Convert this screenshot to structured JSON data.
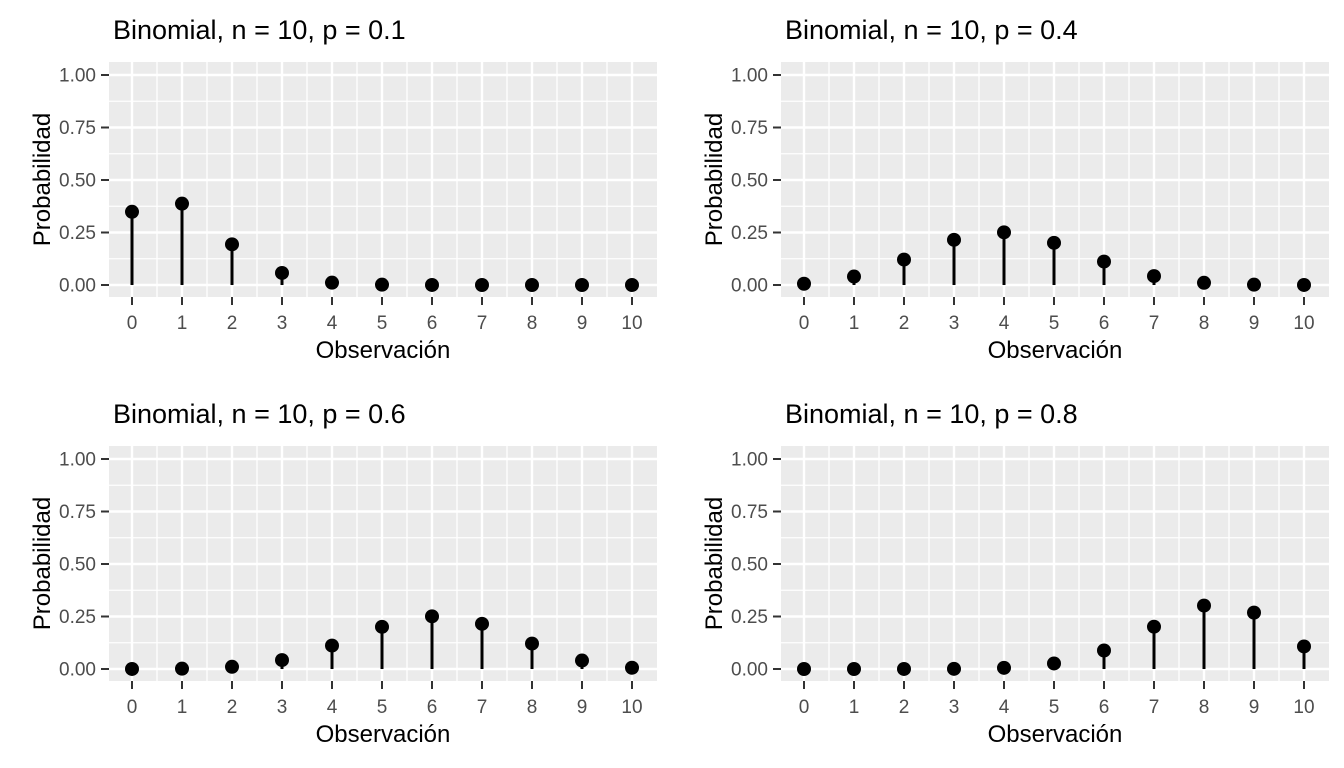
{
  "figure_name": "Binomial distribution PMF small multiples",
  "style": {
    "panel_background": "#EBEBEB",
    "gridline_color": "#FFFFFF",
    "tick_mark_color": "#333333",
    "tick_label_color": "#4D4D4D",
    "title_color": "#000000",
    "axis_title_color": "#000000",
    "point_color": "#000000",
    "stem_color": "#000000",
    "figure_background": "#FFFFFF"
  },
  "chart_data": [
    {
      "type": "scatter",
      "mark": "point-with-stem",
      "title": "Binomial, n = 10, p = 0.1",
      "xlabel": "Observación",
      "ylabel": "Probabilidad",
      "x": [
        0,
        1,
        2,
        3,
        4,
        5,
        6,
        7,
        8,
        9,
        10
      ],
      "values": [
        0.3487,
        0.3874,
        0.1937,
        0.0574,
        0.0112,
        0.0015,
        0.0001,
        0,
        0,
        0,
        0
      ],
      "xtick_labels": [
        "0",
        "1",
        "2",
        "3",
        "4",
        "5",
        "6",
        "7",
        "8",
        "9",
        "10"
      ],
      "yticks": [
        0,
        0.25,
        0.5,
        0.75,
        1.0
      ],
      "ytick_labels": [
        "0.00",
        "0.25",
        "0.50",
        "0.75",
        "1.00"
      ],
      "ylim": [
        0,
        1
      ],
      "grid": true,
      "legend": "none"
    },
    {
      "type": "scatter",
      "mark": "point-with-stem",
      "title": "Binomial, n = 10, p = 0.4",
      "xlabel": "Observación",
      "ylabel": "Probabilidad",
      "x": [
        0,
        1,
        2,
        3,
        4,
        5,
        6,
        7,
        8,
        9,
        10
      ],
      "values": [
        0.006,
        0.0403,
        0.1209,
        0.215,
        0.2508,
        0.2007,
        0.1115,
        0.0425,
        0.0106,
        0.0016,
        0.0001
      ],
      "xtick_labels": [
        "0",
        "1",
        "2",
        "3",
        "4",
        "5",
        "6",
        "7",
        "8",
        "9",
        "10"
      ],
      "yticks": [
        0,
        0.25,
        0.5,
        0.75,
        1.0
      ],
      "ytick_labels": [
        "0.00",
        "0.25",
        "0.50",
        "0.75",
        "1.00"
      ],
      "ylim": [
        0,
        1
      ],
      "grid": true,
      "legend": "none"
    },
    {
      "type": "scatter",
      "mark": "point-with-stem",
      "title": "Binomial, n = 10, p = 0.6",
      "xlabel": "Observación",
      "ylabel": "Probabilidad",
      "x": [
        0,
        1,
        2,
        3,
        4,
        5,
        6,
        7,
        8,
        9,
        10
      ],
      "values": [
        0.0001,
        0.0016,
        0.0106,
        0.0425,
        0.1115,
        0.2007,
        0.2508,
        0.215,
        0.1209,
        0.0403,
        0.006
      ],
      "xtick_labels": [
        "0",
        "1",
        "2",
        "3",
        "4",
        "5",
        "6",
        "7",
        "8",
        "9",
        "10"
      ],
      "yticks": [
        0,
        0.25,
        0.5,
        0.75,
        1.0
      ],
      "ytick_labels": [
        "0.00",
        "0.25",
        "0.50",
        "0.75",
        "1.00"
      ],
      "ylim": [
        0,
        1
      ],
      "grid": true,
      "legend": "none"
    },
    {
      "type": "scatter",
      "mark": "point-with-stem",
      "title": "Binomial, n = 10, p = 0.8",
      "xlabel": "Observación",
      "ylabel": "Probabilidad",
      "x": [
        0,
        1,
        2,
        3,
        4,
        5,
        6,
        7,
        8,
        9,
        10
      ],
      "values": [
        0,
        0,
        0.0001,
        0.0008,
        0.0055,
        0.0264,
        0.0881,
        0.2013,
        0.302,
        0.2684,
        0.1074
      ],
      "xtick_labels": [
        "0",
        "1",
        "2",
        "3",
        "4",
        "5",
        "6",
        "7",
        "8",
        "9",
        "10"
      ],
      "yticks": [
        0,
        0.25,
        0.5,
        0.75,
        1.0
      ],
      "ytick_labels": [
        "0.00",
        "0.25",
        "0.50",
        "0.75",
        "1.00"
      ],
      "ylim": [
        0,
        1
      ],
      "grid": true,
      "legend": "none"
    }
  ]
}
